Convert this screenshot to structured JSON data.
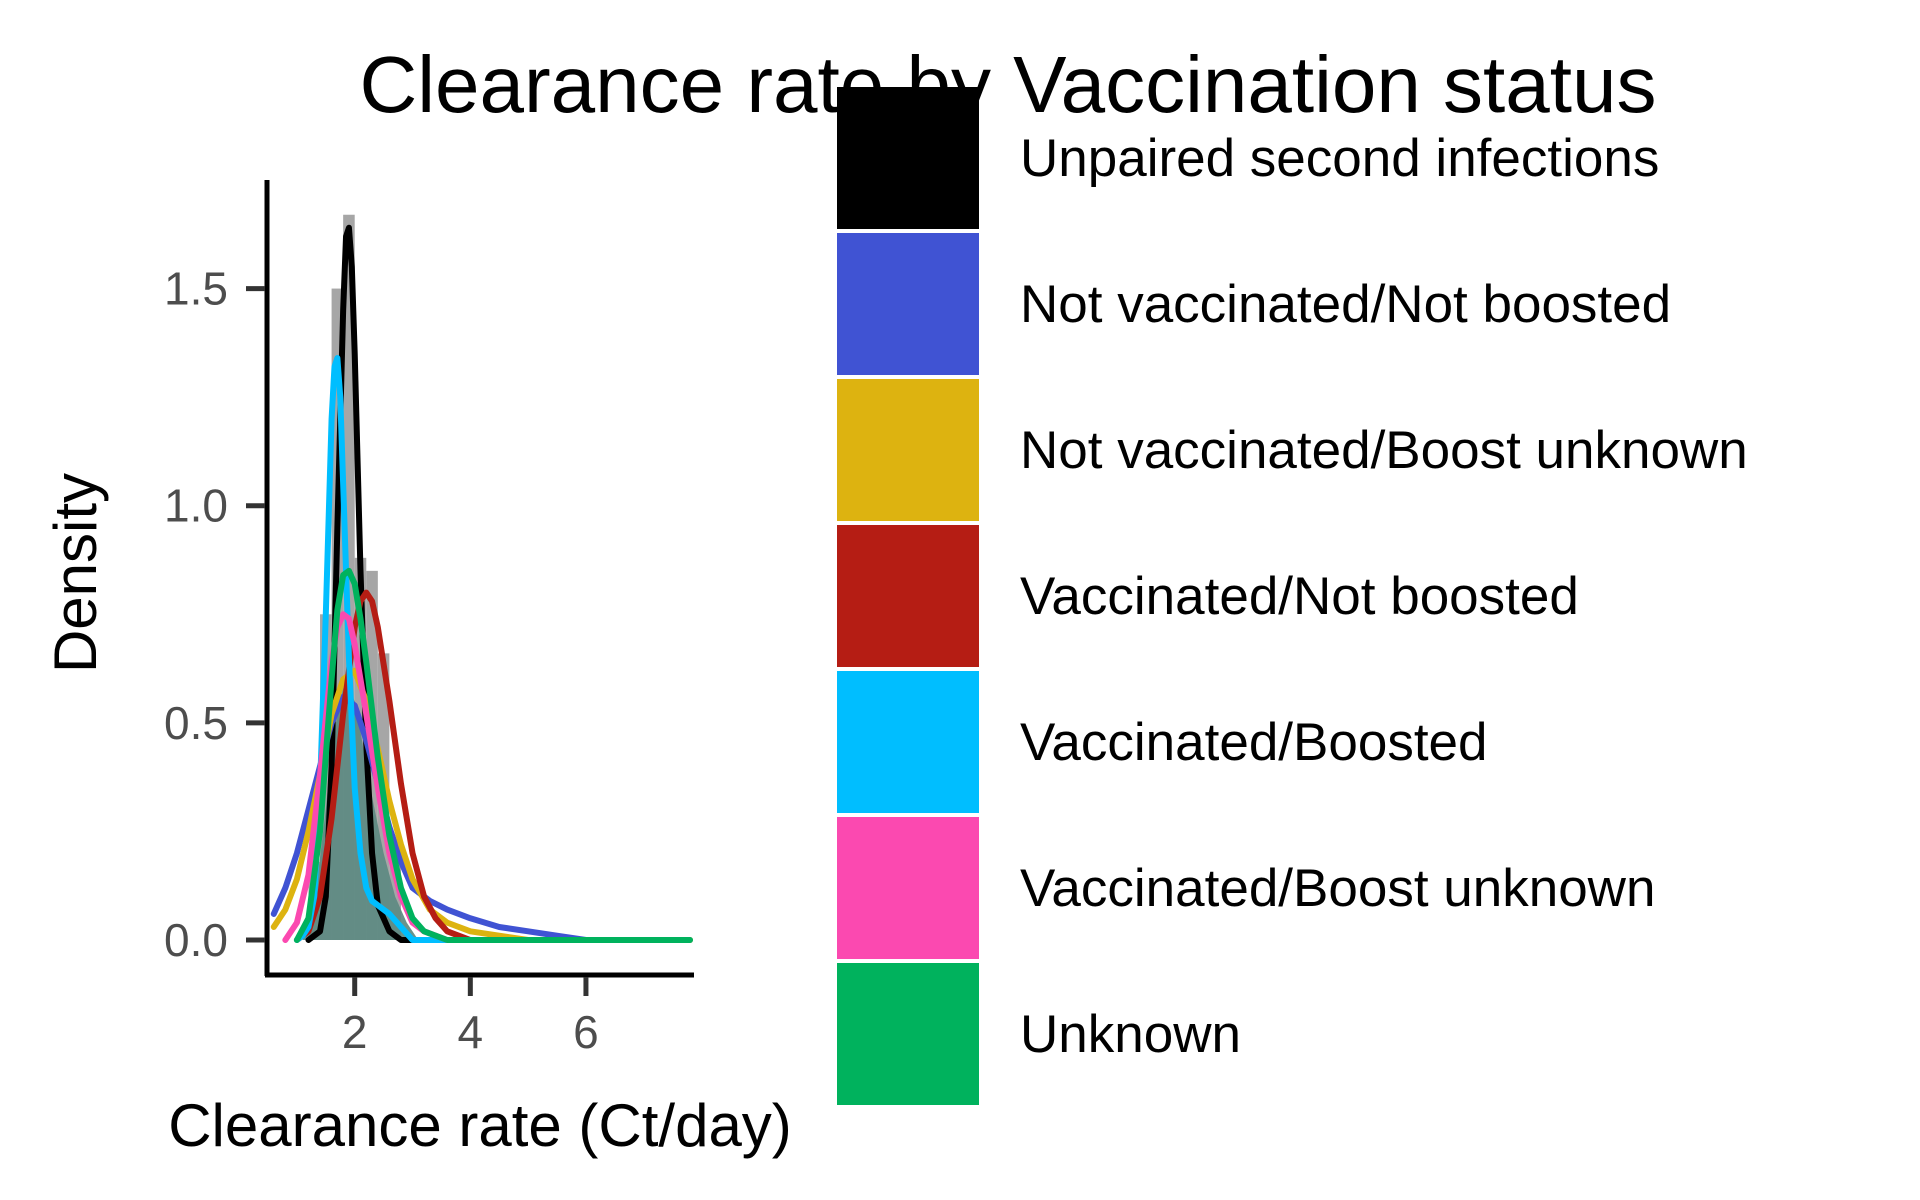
{
  "chart_data": {
    "type": "area",
    "title": "Clearance rate by Vaccination status",
    "xlabel": "Clearance rate (Ct/day)",
    "ylabel": "Density",
    "xlim": [
      0.5,
      7.8
    ],
    "ylim": [
      0,
      1.75
    ],
    "xticks": [
      2,
      4,
      6
    ],
    "yticks": [
      0.0,
      0.5,
      1.0,
      1.5
    ],
    "ytick_labels": [
      "0.0",
      "0.5",
      "1.0",
      "1.5"
    ],
    "grid": false,
    "legend_position": "right",
    "background_histogram": {
      "bin_width": 0.2,
      "bin_starts": [
        1.2,
        1.4,
        1.6,
        1.8,
        2.0,
        2.2,
        2.4,
        2.6
      ],
      "values": [
        0.18,
        0.75,
        1.5,
        1.67,
        0.88,
        0.85,
        0.66,
        0.22
      ]
    },
    "background_density": {
      "x": [
        1.1,
        1.3,
        1.5,
        1.6,
        1.7,
        1.8,
        1.9,
        2.0,
        2.1,
        2.2,
        2.3,
        2.5,
        2.7,
        2.9,
        3.1
      ],
      "y": [
        0.0,
        0.08,
        0.3,
        0.44,
        0.52,
        0.58,
        0.58,
        0.55,
        0.48,
        0.4,
        0.33,
        0.2,
        0.1,
        0.04,
        0.0
      ]
    },
    "series": [
      {
        "name": "Unpaired second infections",
        "color": "#000000",
        "x": [
          1.2,
          1.4,
          1.5,
          1.6,
          1.7,
          1.8,
          1.85,
          1.9,
          1.95,
          2.0,
          2.1,
          2.2,
          2.3,
          2.4,
          2.6,
          2.8,
          3.0
        ],
        "y": [
          0.0,
          0.02,
          0.1,
          0.4,
          0.95,
          1.45,
          1.62,
          1.64,
          1.55,
          1.35,
          0.85,
          0.45,
          0.2,
          0.08,
          0.02,
          0.0,
          0.0
        ]
      },
      {
        "name": "Not vaccinated/Not boosted",
        "color": "#4053D3",
        "x": [
          0.6,
          0.8,
          1.0,
          1.2,
          1.4,
          1.6,
          1.8,
          2.0,
          2.2,
          2.4,
          2.6,
          2.8,
          3.0,
          3.3,
          3.6,
          4.0,
          4.5,
          5.0,
          5.5,
          6.0,
          7.0,
          7.8
        ],
        "y": [
          0.06,
          0.12,
          0.2,
          0.3,
          0.4,
          0.5,
          0.56,
          0.54,
          0.46,
          0.36,
          0.26,
          0.18,
          0.12,
          0.09,
          0.07,
          0.05,
          0.03,
          0.02,
          0.01,
          0.0,
          0.0,
          0.0
        ]
      },
      {
        "name": "Not vaccinated/Boost unknown",
        "color": "#DDB310",
        "x": [
          0.6,
          0.8,
          1.0,
          1.2,
          1.4,
          1.6,
          1.8,
          2.0,
          2.2,
          2.4,
          2.6,
          2.8,
          3.0,
          3.3,
          3.6,
          4.0,
          4.5,
          5.0,
          6.0,
          7.8
        ],
        "y": [
          0.03,
          0.07,
          0.14,
          0.25,
          0.38,
          0.52,
          0.6,
          0.62,
          0.55,
          0.44,
          0.32,
          0.22,
          0.14,
          0.07,
          0.04,
          0.02,
          0.01,
          0.0,
          0.0,
          0.0
        ]
      },
      {
        "name": "Vaccinated/Not boosted",
        "color": "#B51D14",
        "x": [
          1.0,
          1.2,
          1.4,
          1.6,
          1.8,
          2.0,
          2.1,
          2.2,
          2.3,
          2.4,
          2.6,
          2.8,
          3.0,
          3.2,
          3.4,
          3.6,
          3.8,
          4.0,
          4.5
        ],
        "y": [
          0.0,
          0.02,
          0.1,
          0.28,
          0.52,
          0.72,
          0.78,
          0.8,
          0.78,
          0.72,
          0.55,
          0.36,
          0.2,
          0.1,
          0.05,
          0.02,
          0.01,
          0.0,
          0.0
        ]
      },
      {
        "name": "Vaccinated/Boosted",
        "color": "#00BEFF",
        "x": [
          1.0,
          1.1,
          1.2,
          1.3,
          1.4,
          1.5,
          1.6,
          1.65,
          1.7,
          1.75,
          1.8,
          1.9,
          2.0,
          2.1,
          2.2,
          2.3,
          2.4,
          2.5,
          2.6,
          2.8,
          3.0,
          3.2,
          3.4,
          3.6,
          3.8,
          4.2,
          5.0,
          6.0,
          7.0
        ],
        "y": [
          0.0,
          0.01,
          0.03,
          0.1,
          0.35,
          0.75,
          1.2,
          1.32,
          1.34,
          1.25,
          1.05,
          0.65,
          0.35,
          0.2,
          0.12,
          0.09,
          0.08,
          0.07,
          0.06,
          0.03,
          0.0,
          0.0,
          0.0,
          0.0,
          0.0,
          0.0,
          0.0,
          0.0,
          0.0
        ]
      },
      {
        "name": "Vaccinated/Boost unknown",
        "color": "#FB49B0",
        "x": [
          0.8,
          1.0,
          1.2,
          1.4,
          1.6,
          1.7,
          1.8,
          1.9,
          2.0,
          2.2,
          2.4,
          2.6,
          2.8,
          3.0,
          3.2,
          3.4,
          3.6,
          3.8
        ],
        "y": [
          0.0,
          0.04,
          0.15,
          0.38,
          0.64,
          0.72,
          0.75,
          0.74,
          0.68,
          0.52,
          0.35,
          0.2,
          0.1,
          0.04,
          0.02,
          0.01,
          0.0,
          0.0
        ]
      },
      {
        "name": "Unknown",
        "color": "#00B25D",
        "x": [
          1.0,
          1.2,
          1.4,
          1.6,
          1.7,
          1.8,
          1.9,
          2.0,
          2.1,
          2.2,
          2.4,
          2.6,
          2.8,
          3.0,
          3.2,
          3.4,
          3.6,
          4.0,
          5.0,
          6.0,
          7.0,
          7.8
        ],
        "y": [
          0.0,
          0.05,
          0.25,
          0.6,
          0.76,
          0.84,
          0.85,
          0.82,
          0.74,
          0.64,
          0.42,
          0.24,
          0.12,
          0.05,
          0.02,
          0.01,
          0.0,
          0.0,
          0.0,
          0.0,
          0.0,
          0.0
        ]
      }
    ]
  }
}
